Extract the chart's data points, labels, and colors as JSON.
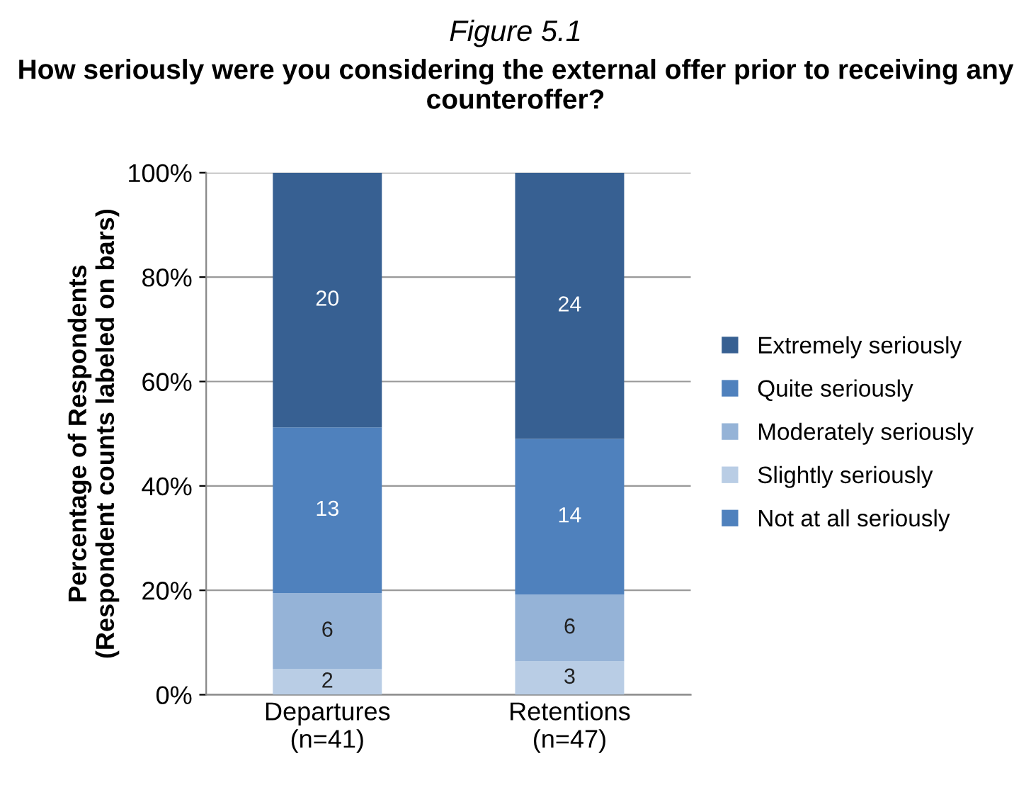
{
  "chart_data": {
    "type": "bar",
    "stacked": true,
    "title": "Figure 5.1",
    "subtitle": "How seriously were you considering the external offer prior to receiving any counteroffer?",
    "ylabel": "Percentage of Respondents\n(Respondent counts labeled on bars)",
    "categories": [
      "Departures\n(n=41)",
      "Retentions\n(n=47)"
    ],
    "series": [
      {
        "name": "Not at all seriously",
        "color": "#4f81bd",
        "values": [
          0,
          0
        ]
      },
      {
        "name": "Slightly seriously",
        "color": "#b9cde5",
        "values": [
          4.9,
          6.4
        ]
      },
      {
        "name": "Moderately seriously",
        "color": "#95b3d7",
        "values": [
          14.6,
          12.8
        ]
      },
      {
        "name": "Quite seriously",
        "color": "#4f81bd",
        "values": [
          31.7,
          29.8
        ]
      },
      {
        "name": "Extremely seriously",
        "color": "#376092",
        "values": [
          48.8,
          51.0
        ]
      }
    ],
    "annotations": [
      "2",
      "6",
      "13",
      "20",
      "3",
      "6",
      "14",
      "24"
    ],
    "ylim": [
      0,
      100
    ],
    "yticks": [
      {
        "value": 0,
        "label": "0%"
      },
      {
        "value": 20,
        "label": "20%"
      },
      {
        "value": 40,
        "label": "40%"
      },
      {
        "value": 60,
        "label": "60%"
      },
      {
        "value": 80,
        "label": "80%"
      },
      {
        "value": 100,
        "label": "100%"
      }
    ],
    "grid": "y",
    "legend": "right"
  }
}
